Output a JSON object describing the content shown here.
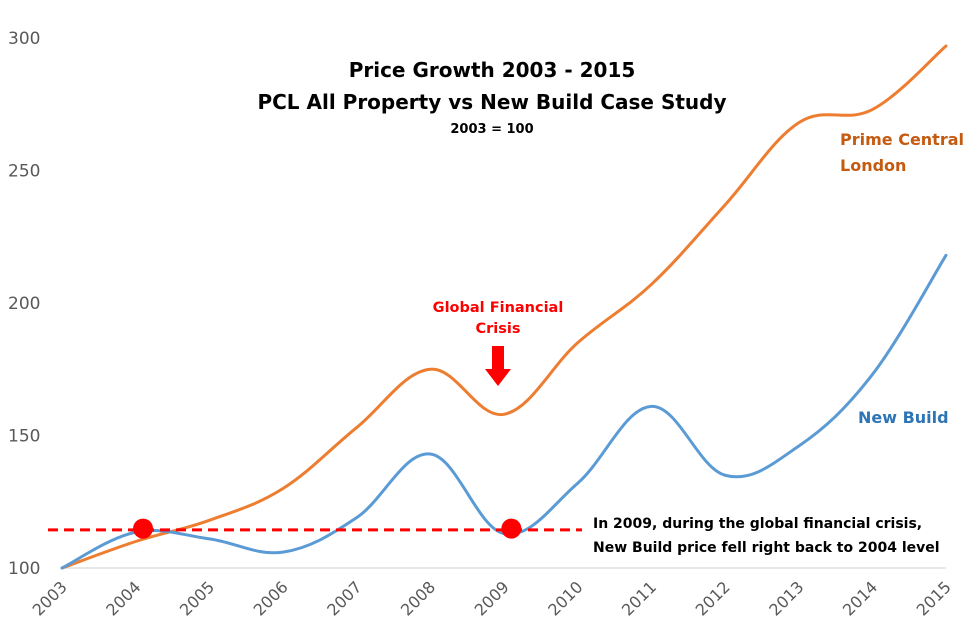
{
  "chart_data": {
    "type": "line",
    "title": "Price Growth 2003 - 2015",
    "subtitle": "PCL All Property vs New Build Case Study",
    "note": "2003 = 100",
    "xlabel": "",
    "ylabel": "",
    "x": [
      "2003",
      "2004",
      "2005",
      "2006",
      "2007",
      "2008",
      "2009",
      "2010",
      "2011",
      "2012",
      "2013",
      "2014",
      "2015"
    ],
    "ylim": [
      100,
      300
    ],
    "yticks": [
      "100",
      "150",
      "200",
      "250",
      "300"
    ],
    "ytick_values": [
      100,
      150,
      200,
      250,
      300
    ],
    "grid": false,
    "legend": "none (inline labels right)",
    "series": [
      {
        "name": "Prime Central London",
        "label_lines": [
          "Prime Central",
          "London"
        ],
        "color": "#ed7d31",
        "label_color": "#c55a11",
        "values": [
          100,
          110,
          118,
          130,
          153,
          175,
          158,
          185,
          207,
          237,
          268,
          273,
          297
        ]
      },
      {
        "name": "New Build",
        "label_lines": [
          "New Build"
        ],
        "color": "#5b9bd5",
        "label_color": "#2e75b6",
        "values": [
          100,
          113.5,
          111,
          106,
          119,
          143,
          113,
          132,
          161,
          135,
          146,
          173,
          218
        ]
      }
    ],
    "reference_line": {
      "value": 114,
      "color": "#ff0000",
      "style": "dashed"
    },
    "highlight_points": [
      {
        "x": 2004.1,
        "y": 114.5,
        "color": "#ff0000"
      },
      {
        "x": 2009.1,
        "y": 114.5,
        "color": "#ff0000"
      }
    ],
    "annotations": [
      {
        "id": "gfc",
        "lines": [
          "Global Financial",
          "Crisis"
        ],
        "color": "#ff0000",
        "arrow": "down",
        "x": 2009
      },
      {
        "id": "note",
        "lines": [
          "In 2009, during the global financial crisis,",
          "New Build price fell right back to 2004 level"
        ],
        "color": "#000000"
      }
    ]
  }
}
